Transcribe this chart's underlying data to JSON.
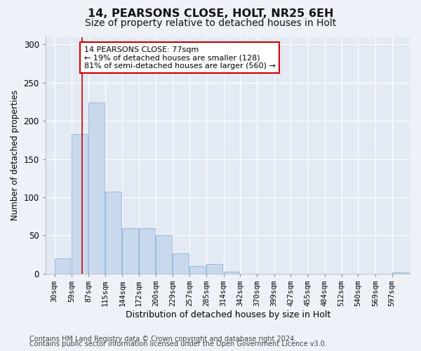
{
  "title": "14, PEARSONS CLOSE, HOLT, NR25 6EH",
  "subtitle": "Size of property relative to detached houses in Holt",
  "xlabel": "Distribution of detached houses by size in Holt",
  "ylabel": "Number of detached properties",
  "footer_line1": "Contains HM Land Registry data © Crown copyright and database right 2024.",
  "footer_line2": "Contains public sector information licensed under the Open Government Licence v3.0.",
  "bins": [
    30,
    59,
    87,
    115,
    144,
    172,
    200,
    229,
    257,
    285,
    314,
    342,
    370,
    399,
    427,
    455,
    484,
    512,
    540,
    569,
    597
  ],
  "values": [
    20,
    183,
    224,
    107,
    60,
    60,
    50,
    27,
    10,
    13,
    3,
    0,
    0,
    0,
    0,
    0,
    0,
    0,
    0,
    0,
    2
  ],
  "bar_color": "#c8d9ee",
  "bar_edge_color": "#8fb4d8",
  "vline_x": 77,
  "vline_color": "#cc0000",
  "annotation_text": "14 PEARSONS CLOSE: 77sqm\n← 19% of detached houses are smaller (128)\n81% of semi-detached houses are larger (560) →",
  "annotation_box_color": "#ffffff",
  "annotation_box_edge": "#cc0000",
  "ylim": [
    0,
    310
  ],
  "xlim_left": 15,
  "xlim_right": 628,
  "background_color": "#eef2f8",
  "plot_bg_color": "#e4eaf4",
  "title_fontsize": 11.5,
  "subtitle_fontsize": 10,
  "ylabel_fontsize": 8.5,
  "xlabel_fontsize": 9,
  "tick_fontsize": 7.5,
  "footer_fontsize": 7,
  "annotation_fontsize": 8
}
